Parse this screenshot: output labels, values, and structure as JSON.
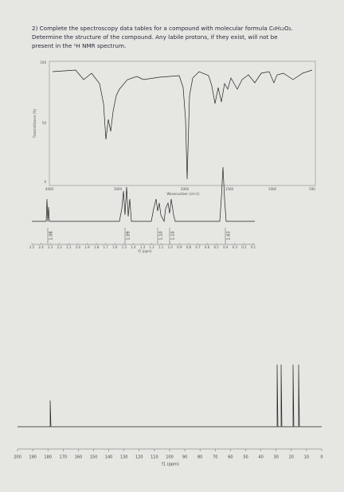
{
  "question": {
    "lines": [
      "2) Complete the spectroscopy data tables for a compound with molecular formula C₆H₁₂O₂.",
      "Determine the structure of the compound. Any labile protons, if they exist, will not be",
      "present in the ¹H NMR spectrum."
    ]
  },
  "ir": {
    "y_axis_label": "Transmittance (%)",
    "y_ticks": [
      "100",
      "50",
      "0"
    ],
    "x_ticks": [
      "4000",
      "3000",
      "2000",
      "1500",
      "1000",
      "500"
    ],
    "x_axis_label": "Wavenumber (cm-1)"
  },
  "h_nmr": {
    "integrations": [
      "1.08",
      "1.09",
      "1.10",
      "1.10",
      "1.63"
    ],
    "x_ticks": [
      "2.5",
      "2.4",
      "2.3",
      "2.2",
      "2.1",
      "2.0",
      "1.9",
      "1.8",
      "1.7",
      "1.6",
      "1.5",
      "1.4",
      "1.3",
      "1.2",
      "1.1",
      "1.0",
      "0.9",
      "0.8",
      "0.7",
      "0.6",
      "0.5",
      "0.4",
      "0.3",
      "0.2",
      "0.1"
    ],
    "x_axis_label": "f1 (ppm)"
  },
  "c_nmr": {
    "x_ticks": [
      "200",
      "190",
      "180",
      "170",
      "160",
      "150",
      "140",
      "130",
      "120",
      "110",
      "100",
      "90",
      "80",
      "70",
      "60",
      "50",
      "40",
      "30",
      "20",
      "10",
      "0"
    ],
    "x_axis_label": "f1 (ppm)"
  }
}
